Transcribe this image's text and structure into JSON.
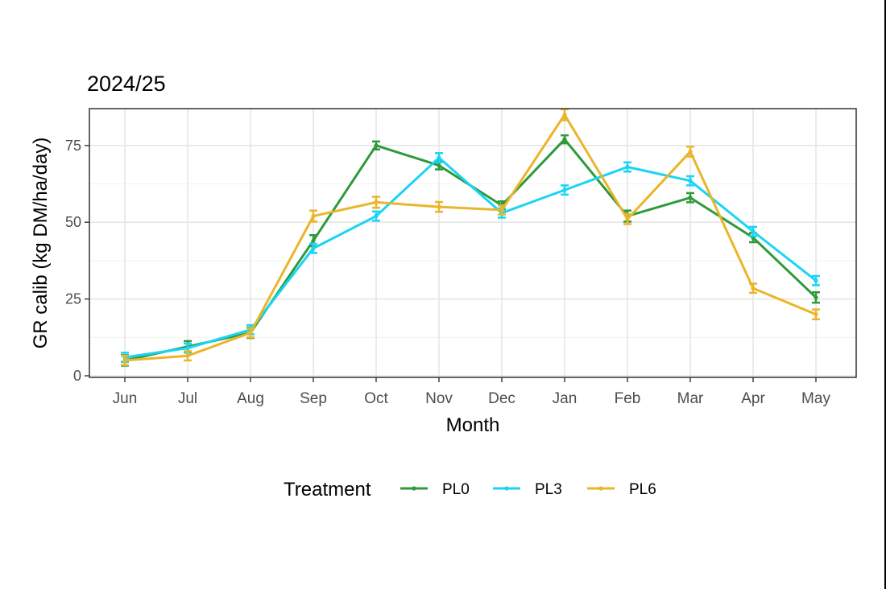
{
  "chart_data": {
    "type": "line",
    "title": "2024/25",
    "xlabel": "Month",
    "ylabel": "GR calib (kg DM/ha/day)",
    "categories": [
      "Jun",
      "Jul",
      "Aug",
      "Sep",
      "Oct",
      "Nov",
      "Dec",
      "Jan",
      "Feb",
      "Mar",
      "Apr",
      "May"
    ],
    "ylim": [
      0,
      87
    ],
    "yticks": [
      0,
      25,
      50,
      75
    ],
    "grid": true,
    "error_bars": true,
    "legend": {
      "title": "Treatment",
      "placement": "bottom"
    },
    "series": [
      {
        "name": "PL0",
        "color": "#2e9a3a",
        "values": [
          5,
          9.5,
          14,
          44,
          75,
          68.5,
          55.5,
          77,
          52,
          58,
          45,
          25.5
        ],
        "errors": [
          1.7,
          1.8,
          1.7,
          1.8,
          1.3,
          1.3,
          1.3,
          1.3,
          1.8,
          1.5,
          1.5,
          1.7
        ]
      },
      {
        "name": "PL3",
        "color": "#1ad4f5",
        "values": [
          6,
          9,
          15,
          41.5,
          52,
          71,
          53,
          60.5,
          68,
          63.5,
          47,
          31
        ],
        "errors": [
          1.5,
          1.5,
          1.5,
          1.5,
          1.5,
          1.5,
          1.5,
          1.5,
          1.5,
          1.5,
          1.5,
          1.5
        ]
      },
      {
        "name": "PL6",
        "color": "#ebb52a",
        "values": [
          5,
          6.5,
          14,
          52,
          56.5,
          55,
          54,
          85,
          51,
          73,
          28.5,
          20
        ],
        "errors": [
          1.5,
          1.5,
          1.5,
          1.8,
          1.8,
          1.6,
          1.5,
          1.8,
          1.6,
          1.6,
          1.5,
          1.6
        ]
      }
    ]
  }
}
